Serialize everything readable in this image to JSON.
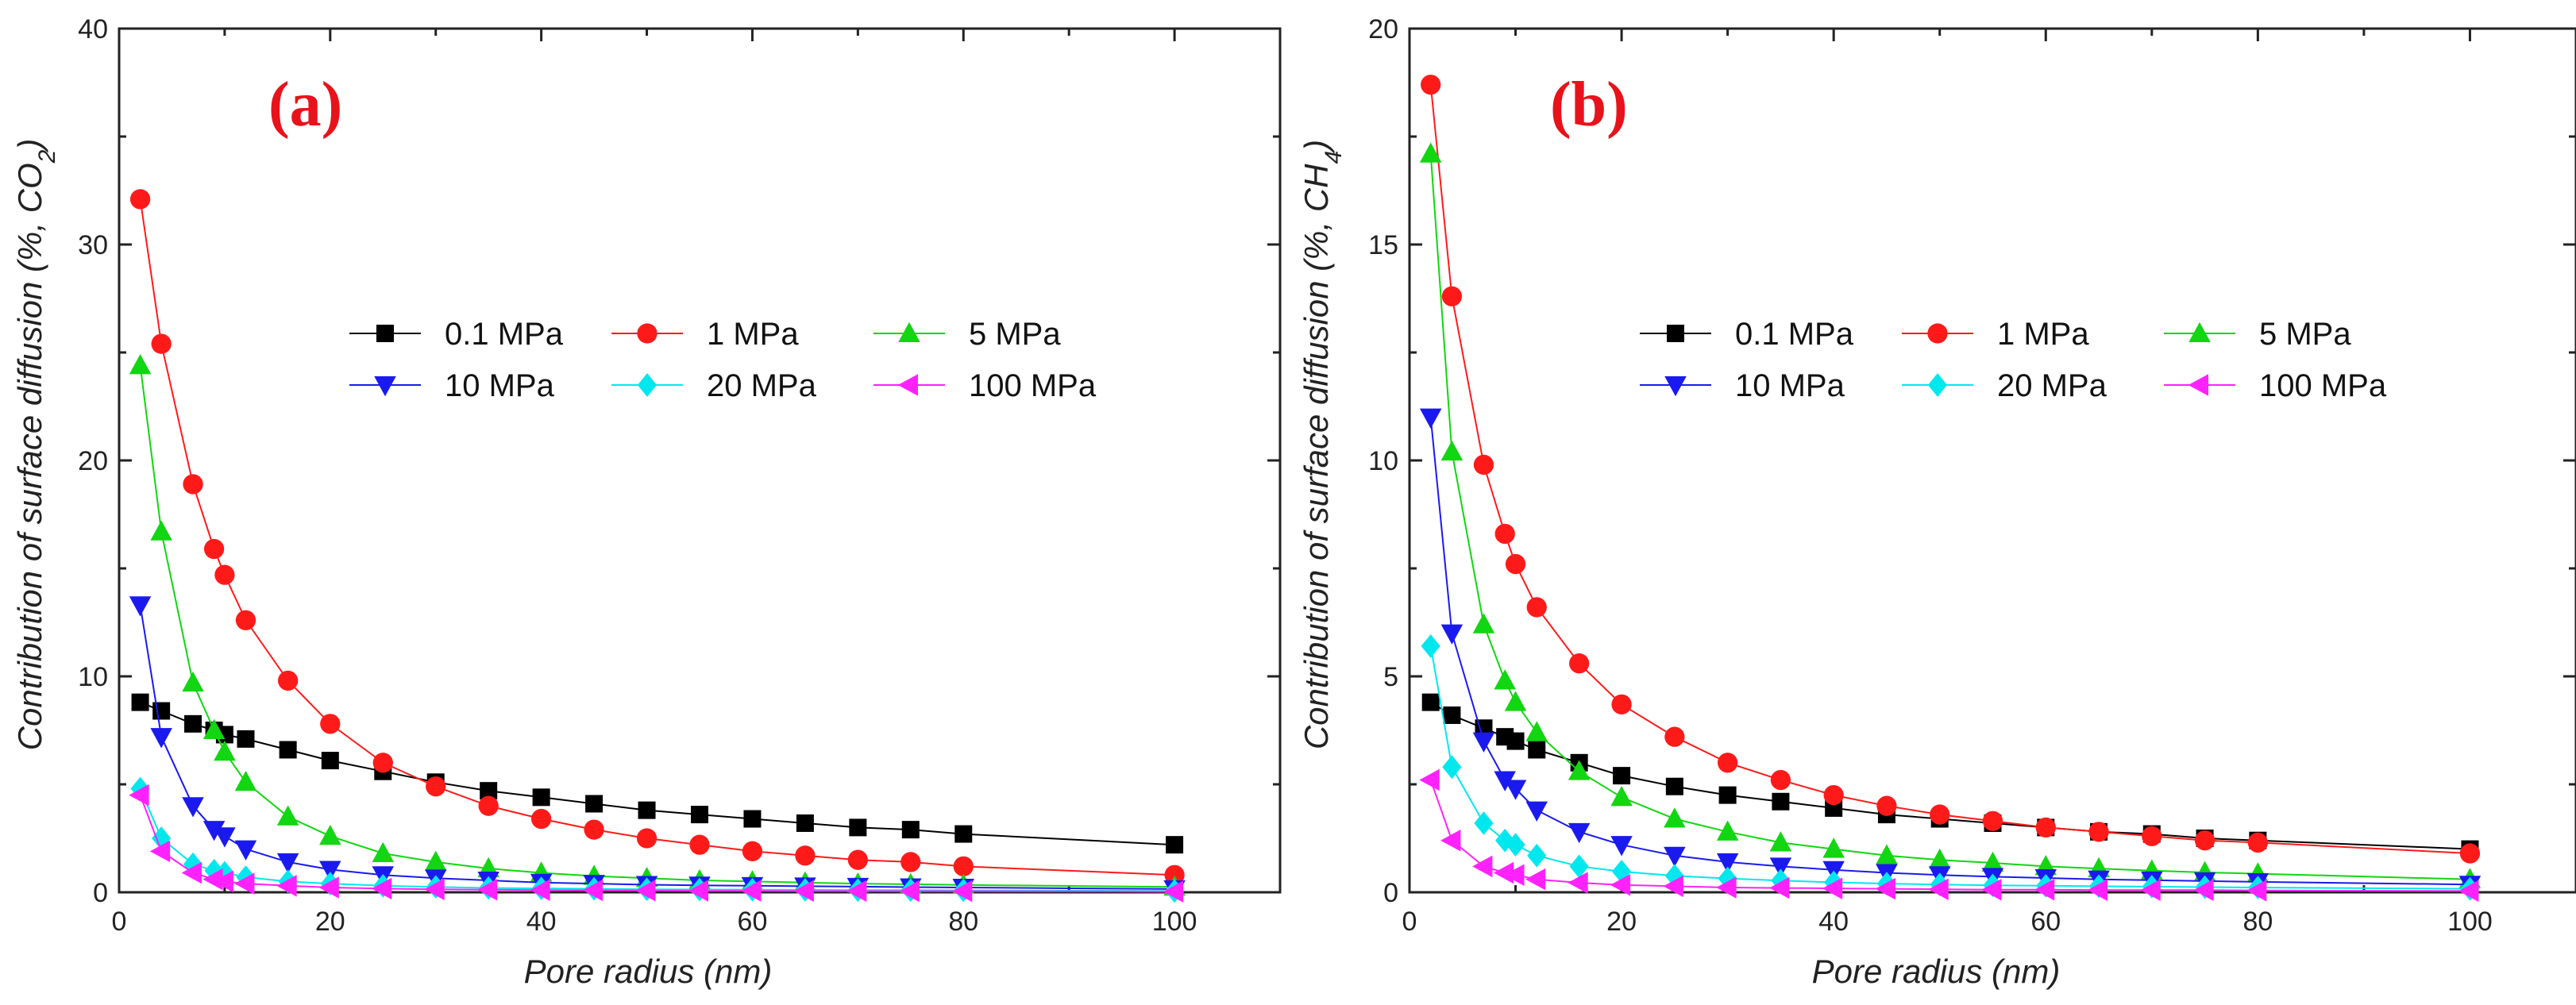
{
  "colors": {
    "panel_label": "#e8121b",
    "axis": "#222222",
    "series": [
      "#000000",
      "#ff1a1a",
      "#11d611",
      "#1a1aee",
      "#00e8ee",
      "#ff22ff"
    ]
  },
  "chart_data": [
    {
      "type": "line",
      "panel_label": "(a)",
      "title": "",
      "xlabel": "Pore radius (nm)",
      "ylabel": "Contribution of surface diffusion (%, CO",
      "ylabel_sub": "2",
      "ylabel_tail": ")",
      "xlim": [
        0,
        110
      ],
      "ylim": [
        0,
        40
      ],
      "xticks": [
        "0",
        "20",
        "40",
        "60",
        "80",
        "100"
      ],
      "yticks": [
        "0",
        "10",
        "20",
        "30",
        "40"
      ],
      "x": [
        2,
        4,
        7,
        9,
        10,
        12,
        16,
        20,
        25,
        30,
        35,
        40,
        45,
        50,
        55,
        60,
        65,
        70,
        75,
        80,
        100
      ],
      "legend": "top-right",
      "series": [
        {
          "name": "0.1 MPa",
          "marker": "square",
          "values": [
            8.8,
            8.4,
            7.8,
            7.5,
            7.3,
            7.1,
            6.6,
            6.1,
            5.6,
            5.1,
            4.7,
            4.4,
            4.1,
            3.8,
            3.6,
            3.4,
            3.2,
            3.0,
            2.9,
            2.7,
            2.2
          ]
        },
        {
          "name": "1 MPa",
          "marker": "circle",
          "values": [
            32.1,
            25.4,
            18.9,
            15.9,
            14.7,
            12.6,
            9.8,
            7.8,
            6.0,
            4.9,
            4.0,
            3.4,
            2.9,
            2.5,
            2.2,
            1.9,
            1.7,
            1.5,
            1.4,
            1.2,
            0.8
          ]
        },
        {
          "name": "5 MPa",
          "marker": "triangle-up",
          "values": [
            24.4,
            16.7,
            9.7,
            7.5,
            6.5,
            5.1,
            3.5,
            2.6,
            1.8,
            1.4,
            1.1,
            0.9,
            0.75,
            0.65,
            0.55,
            0.5,
            0.45,
            0.4,
            0.37,
            0.34,
            0.25
          ]
        },
        {
          "name": "10 MPa",
          "marker": "triangle-down",
          "values": [
            13.3,
            7.2,
            4.0,
            2.9,
            2.6,
            2.0,
            1.4,
            1.05,
            0.8,
            0.65,
            0.55,
            0.45,
            0.4,
            0.35,
            0.32,
            0.3,
            0.28,
            0.26,
            0.24,
            0.22,
            0.15
          ]
        },
        {
          "name": "20 MPa",
          "marker": "diamond",
          "values": [
            4.8,
            2.5,
            1.3,
            1.0,
            0.9,
            0.7,
            0.5,
            0.4,
            0.3,
            0.25,
            0.2,
            0.18,
            0.16,
            0.14,
            0.13,
            0.12,
            0.11,
            0.1,
            0.1,
            0.09,
            0.06
          ]
        },
        {
          "name": "100 MPa",
          "marker": "triangle-left",
          "values": [
            4.5,
            1.9,
            0.9,
            0.6,
            0.5,
            0.4,
            0.3,
            0.22,
            0.17,
            0.14,
            0.12,
            0.1,
            0.09,
            0.08,
            0.07,
            0.07,
            0.06,
            0.06,
            0.05,
            0.05,
            0.03
          ]
        }
      ]
    },
    {
      "type": "line",
      "panel_label": "(b)",
      "title": "",
      "xlabel": "Pore radius (nm)",
      "ylabel": "Contribution of surface diffusion (%, CH",
      "ylabel_sub": "4",
      "ylabel_tail": ")",
      "xlim": [
        0,
        110
      ],
      "ylim": [
        0,
        20
      ],
      "xticks": [
        "0",
        "20",
        "40",
        "60",
        "80",
        "100"
      ],
      "yticks": [
        "0",
        "5",
        "10",
        "15",
        "20"
      ],
      "x": [
        2,
        4,
        7,
        9,
        10,
        12,
        16,
        20,
        25,
        30,
        35,
        40,
        45,
        50,
        55,
        60,
        65,
        70,
        75,
        80,
        100
      ],
      "legend": "top-right",
      "series": [
        {
          "name": "0.1 MPa",
          "marker": "square",
          "values": [
            4.4,
            4.1,
            3.8,
            3.6,
            3.5,
            3.3,
            3.0,
            2.7,
            2.45,
            2.25,
            2.1,
            1.95,
            1.8,
            1.7,
            1.6,
            1.5,
            1.4,
            1.35,
            1.25,
            1.2,
            1.0
          ]
        },
        {
          "name": "1 MPa",
          "marker": "circle",
          "values": [
            18.7,
            13.8,
            9.9,
            8.3,
            7.6,
            6.6,
            5.3,
            4.35,
            3.6,
            3.0,
            2.6,
            2.25,
            2.0,
            1.8,
            1.65,
            1.5,
            1.4,
            1.3,
            1.2,
            1.15,
            0.9
          ]
        },
        {
          "name": "5 MPa",
          "marker": "triangle-up",
          "values": [
            17.1,
            10.2,
            6.2,
            4.9,
            4.4,
            3.7,
            2.8,
            2.2,
            1.7,
            1.4,
            1.15,
            1.0,
            0.85,
            0.75,
            0.68,
            0.6,
            0.55,
            0.5,
            0.46,
            0.43,
            0.3
          ]
        },
        {
          "name": "10 MPa",
          "marker": "triangle-down",
          "values": [
            11.0,
            6.0,
            3.5,
            2.6,
            2.4,
            1.9,
            1.4,
            1.1,
            0.85,
            0.7,
            0.6,
            0.52,
            0.45,
            0.4,
            0.36,
            0.33,
            0.3,
            0.28,
            0.26,
            0.24,
            0.18
          ]
        },
        {
          "name": "20 MPa",
          "marker": "diamond",
          "values": [
            5.7,
            2.9,
            1.6,
            1.2,
            1.1,
            0.85,
            0.6,
            0.48,
            0.38,
            0.32,
            0.27,
            0.23,
            0.2,
            0.18,
            0.16,
            0.15,
            0.14,
            0.13,
            0.12,
            0.11,
            0.08
          ]
        },
        {
          "name": "100 MPa",
          "marker": "triangle-left",
          "values": [
            2.6,
            1.2,
            0.6,
            0.45,
            0.4,
            0.3,
            0.22,
            0.17,
            0.14,
            0.11,
            0.1,
            0.09,
            0.08,
            0.07,
            0.06,
            0.06,
            0.05,
            0.05,
            0.05,
            0.04,
            0.03
          ]
        }
      ]
    }
  ]
}
